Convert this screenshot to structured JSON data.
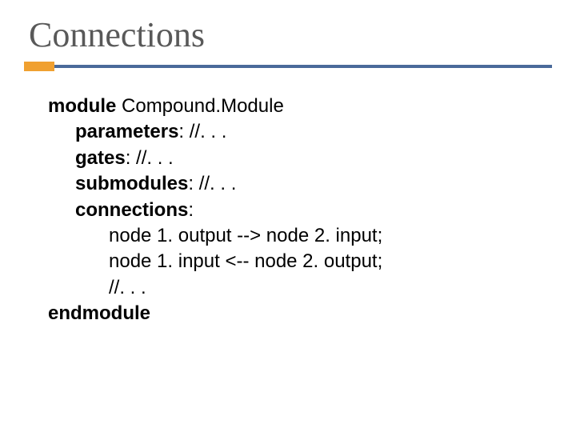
{
  "slide": {
    "title": "Connections",
    "colors": {
      "title_text": "#595959",
      "accent": "#f0a030",
      "divider": "#4a6a9a",
      "body_text": "#000000",
      "background": "#ffffff"
    },
    "code": {
      "line1_kw": "module",
      "line1_rest": " Compound.Module",
      "line2_kw": "parameters",
      "line2_rest": ": //. . .",
      "line3_kw": "gates",
      "line3_rest": ": //. . .",
      "line4_kw": "submodules",
      "line4_rest": ": //. . .",
      "line5_kw": "connections",
      "line5_rest": ":",
      "line6": "node 1. output --> node 2. input;",
      "line7": "node 1. input <-- node 2. output;",
      "line8": "//. . .",
      "line9_kw": "endmodule"
    }
  }
}
